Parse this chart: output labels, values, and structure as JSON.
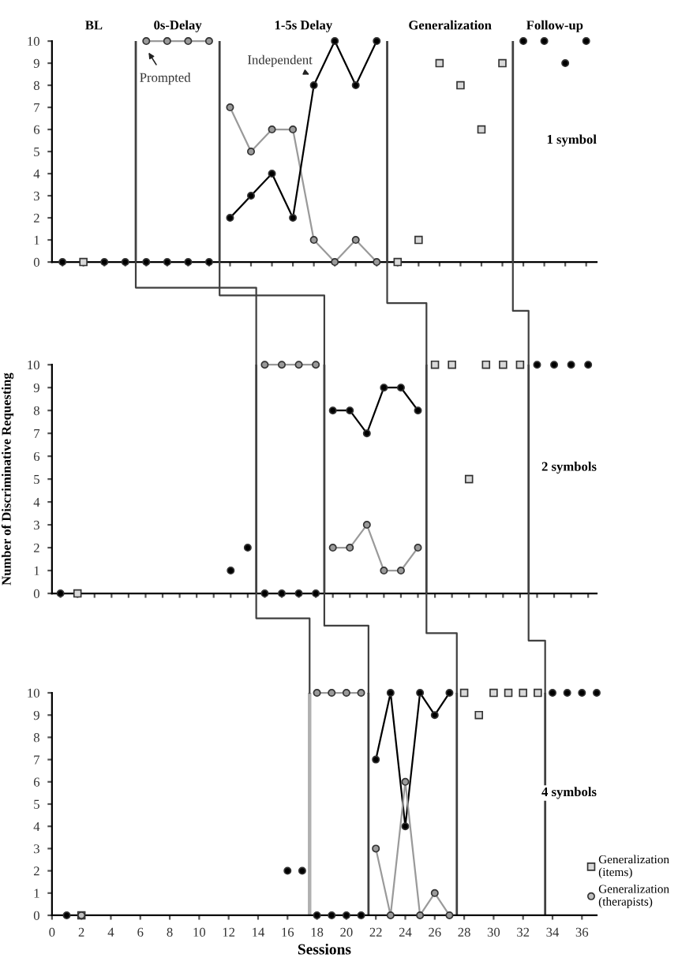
{
  "chart_data": [
    {
      "type": "line",
      "title": "1 symbol",
      "ylim": [
        0,
        10
      ],
      "yticks": [
        0,
        1,
        2,
        3,
        4,
        5,
        6,
        7,
        8,
        9,
        10
      ],
      "tick_labels": "y",
      "categories": [
        null,
        null,
        null,
        null,
        null,
        null,
        null,
        null,
        null,
        null,
        null,
        null,
        null,
        null,
        null,
        null,
        null,
        null,
        null,
        null,
        null,
        null,
        null,
        null,
        null,
        null
      ],
      "series": [
        {
          "type": "scatter",
          "color": "#000000",
          "marker": "circle",
          "values": [
            0,
            null,
            0,
            0,
            null,
            null,
            null,
            null,
            null,
            null,
            null,
            null,
            null,
            null,
            null,
            null,
            null,
            null,
            null,
            null,
            null,
            null,
            null,
            null,
            null,
            null
          ]
        },
        {
          "type": "scatter",
          "color": "#d9d9d9",
          "marker": "square",
          "values": [
            null,
            0,
            null,
            null,
            null,
            null,
            null,
            null,
            null,
            null,
            null,
            null,
            null,
            null,
            null,
            null,
            null,
            null,
            null,
            null,
            null,
            null,
            null,
            null,
            null,
            null
          ]
        },
        {
          "type": "scatter",
          "color": "#000000",
          "marker": "circle",
          "values": [
            null,
            null,
            null,
            null,
            0,
            0,
            0,
            0,
            null,
            null,
            null,
            null,
            null,
            null,
            null,
            null,
            null,
            null,
            null,
            null,
            null,
            null,
            null,
            null,
            null,
            null
          ]
        },
        {
          "color": "#9a9a9a",
          "marker": "circle",
          "values": [
            null,
            null,
            null,
            null,
            10,
            10,
            10,
            10,
            null,
            null,
            null,
            null,
            null,
            null,
            null,
            null,
            null,
            null,
            null,
            null,
            null,
            null,
            null,
            null,
            null,
            null
          ]
        },
        {
          "color": "#9a9a9a",
          "marker": "circle",
          "values": [
            null,
            null,
            null,
            null,
            null,
            null,
            null,
            null,
            7,
            5,
            6,
            6,
            1,
            0,
            1,
            0,
            null,
            null,
            null,
            null,
            null,
            null,
            null,
            null,
            null,
            null
          ]
        },
        {
          "color": "#000000",
          "marker": "circle",
          "values": [
            null,
            null,
            null,
            null,
            null,
            null,
            null,
            null,
            2,
            3,
            4,
            2,
            8,
            10,
            8,
            10,
            null,
            null,
            null,
            null,
            null,
            null,
            null,
            null,
            null,
            null
          ]
        },
        {
          "type": "scatter",
          "color": "#d9d9d9",
          "marker": "square",
          "values": [
            null,
            null,
            null,
            null,
            null,
            null,
            null,
            null,
            null,
            null,
            null,
            null,
            null,
            null,
            null,
            null,
            0,
            1,
            9,
            8,
            6,
            9,
            null,
            null,
            null,
            null
          ]
        },
        {
          "type": "scatter",
          "color": "#000000",
          "marker": "circle",
          "values": [
            null,
            null,
            null,
            null,
            null,
            null,
            null,
            null,
            null,
            null,
            null,
            null,
            null,
            null,
            null,
            null,
            null,
            null,
            null,
            null,
            null,
            null,
            10,
            10,
            9,
            10
          ]
        }
      ],
      "annotations": [
        "BL",
        "0s-Delay",
        "1-5s Delay",
        "Generalization",
        "Follow-up",
        {
          "text": "Prompted",
          "y": 10
        },
        "Independent"
      ]
    },
    {
      "type": "line",
      "title": "2 symbols",
      "ylabel": "Number of Discriminative Requesting",
      "ylim": [
        0,
        10
      ],
      "yticks": [
        0,
        1,
        2,
        3,
        4,
        5,
        6,
        7,
        8,
        9,
        10
      ],
      "tick_labels": "y",
      "categories": [
        null,
        null,
        null,
        null,
        null,
        null,
        null,
        null,
        null,
        null,
        null,
        null,
        null,
        null,
        null,
        null,
        null,
        null,
        null,
        null,
        null,
        null,
        null,
        null,
        null,
        null,
        null,
        null,
        null,
        null,
        null,
        null
      ],
      "series": [
        {
          "type": "scatter",
          "color": "#000000",
          "marker": "circle",
          "values": [
            0,
            null,
            null,
            null,
            null,
            null,
            null,
            null,
            null,
            null,
            1,
            2,
            null,
            null,
            null,
            null,
            null,
            null,
            null,
            null,
            null,
            null,
            null,
            null,
            null,
            null,
            null,
            null,
            null,
            null,
            null,
            null
          ]
        },
        {
          "type": "scatter",
          "color": "#d9d9d9",
          "marker": "square",
          "values": [
            null,
            0,
            null,
            null,
            null,
            null,
            null,
            null,
            null,
            null,
            null,
            null,
            null,
            null,
            null,
            null,
            null,
            null,
            null,
            null,
            null,
            null,
            null,
            null,
            null,
            null,
            null,
            null,
            null,
            null,
            null,
            null
          ]
        },
        {
          "type": "scatter",
          "color": "#000000",
          "marker": "circle",
          "values": [
            null,
            null,
            null,
            null,
            null,
            null,
            null,
            null,
            null,
            null,
            null,
            null,
            0,
            0,
            0,
            0,
            null,
            null,
            null,
            null,
            null,
            null,
            null,
            null,
            null,
            null,
            null,
            null,
            null,
            null,
            null,
            null
          ]
        },
        {
          "color": "#9a9a9a",
          "marker": "circle",
          "values": [
            null,
            null,
            null,
            null,
            null,
            null,
            null,
            null,
            null,
            null,
            null,
            null,
            10,
            10,
            10,
            10,
            null,
            null,
            null,
            null,
            null,
            null,
            null,
            null,
            null,
            null,
            null,
            null,
            null,
            null,
            null,
            null
          ]
        },
        {
          "color": "#000000",
          "marker": "circle",
          "values": [
            null,
            null,
            null,
            null,
            null,
            null,
            null,
            null,
            null,
            null,
            null,
            null,
            null,
            null,
            null,
            null,
            8,
            8,
            7,
            9,
            9,
            8,
            null,
            null,
            null,
            null,
            null,
            null,
            null,
            null,
            null,
            null
          ]
        },
        {
          "color": "#9a9a9a",
          "marker": "circle",
          "values": [
            null,
            null,
            null,
            null,
            null,
            null,
            null,
            null,
            null,
            null,
            null,
            null,
            null,
            null,
            null,
            null,
            2,
            2,
            3,
            1,
            1,
            2,
            null,
            null,
            null,
            null,
            null,
            null,
            null,
            null,
            null,
            null
          ]
        },
        {
          "type": "scatter",
          "color": "#d9d9d9",
          "marker": "square",
          "values": [
            null,
            null,
            null,
            null,
            null,
            null,
            null,
            null,
            null,
            null,
            null,
            null,
            null,
            null,
            null,
            null,
            null,
            null,
            null,
            null,
            null,
            null,
            10,
            10,
            5,
            10,
            10,
            10,
            null,
            null,
            null,
            null
          ]
        },
        {
          "type": "scatter",
          "color": "#000000",
          "marker": "circle",
          "values": [
            null,
            null,
            null,
            null,
            null,
            null,
            null,
            null,
            null,
            null,
            null,
            null,
            null,
            null,
            null,
            null,
            null,
            null,
            null,
            null,
            null,
            null,
            null,
            null,
            null,
            null,
            null,
            null,
            10,
            10,
            10,
            10
          ]
        }
      ]
    },
    {
      "type": "line",
      "title": "4 symbols",
      "xlabel": "Sessions",
      "xlim": [
        0,
        37
      ],
      "ylim": [
        0,
        10
      ],
      "yticks": [
        0,
        1,
        2,
        3,
        4,
        5,
        6,
        7,
        8,
        9,
        10
      ],
      "xticks": [
        0,
        2,
        4,
        6,
        8,
        10,
        12,
        14,
        16,
        18,
        20,
        22,
        24,
        26,
        28,
        30,
        32,
        34,
        36
      ],
      "legend": "bottom right",
      "series": [
        {
          "type": "scatter",
          "color": "#000000",
          "marker": "circle",
          "x": [
            1,
            16,
            17,
            18,
            19,
            20,
            21,
            34,
            35,
            36,
            37
          ],
          "values": [
            0,
            2,
            2,
            0,
            0,
            0,
            0,
            10,
            10,
            10,
            10
          ]
        },
        {
          "type": "scatter",
          "name": "Generalization (items)",
          "color": "#d9d9d9",
          "marker": "square",
          "x": [
            2,
            28,
            29,
            30,
            31,
            32,
            33
          ],
          "values": [
            0,
            10,
            9,
            10,
            10,
            10,
            10
          ]
        },
        {
          "type": "scatter",
          "name": "Generalization (therapists)",
          "color": "#bfbfbf",
          "marker": "circle",
          "x": [
            2
          ],
          "values": [
            0
          ]
        },
        {
          "color": "#9a9a9a",
          "marker": "circle",
          "x": [
            18,
            19,
            20,
            21
          ],
          "values": [
            10,
            10,
            10,
            10
          ]
        },
        {
          "color": "#000000",
          "marker": "circle",
          "x": [
            22,
            23,
            24,
            25,
            26,
            27
          ],
          "values": [
            7,
            10,
            4,
            10,
            9,
            10
          ]
        },
        {
          "color": "#9a9a9a",
          "marker": "circle",
          "x": [
            22,
            23,
            24,
            25,
            26,
            27
          ],
          "values": [
            3,
            0,
            6,
            0,
            1,
            0
          ]
        }
      ],
      "ref_lines": [
        {
          "axis": "x",
          "value": 17.5,
          "color": "#b0b0b0"
        },
        {
          "axis": "x",
          "value": 21.5,
          "color": "#404040"
        },
        {
          "axis": "x",
          "value": 27.5,
          "color": "#404040"
        },
        {
          "axis": "x",
          "value": 33.5,
          "color": "#404040"
        }
      ]
    }
  ]
}
